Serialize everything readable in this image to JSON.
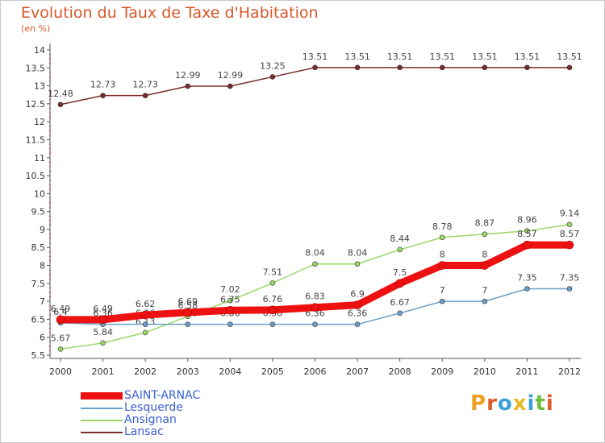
{
  "title": "Evolution du Taux de Taxe d'Habitation",
  "subtitle": "(en %)",
  "logo": {
    "text": "Proxiti",
    "letters": [
      "P",
      "r",
      "o",
      "x",
      "i",
      "t",
      "i"
    ],
    "colors": [
      "#f0a020",
      "#e05a2a",
      "#3aa0d8",
      "#e8b820",
      "#3aa0d8",
      "#6cbf3a",
      "#e05a2a"
    ]
  },
  "chart_data": {
    "type": "line",
    "x": [
      2000,
      2001,
      2002,
      2003,
      2004,
      2005,
      2006,
      2007,
      2008,
      2009,
      2010,
      2011,
      2012
    ],
    "xlabels": [
      "2000",
      "2001",
      "2002",
      "2003",
      "2004",
      "2005",
      "2006",
      "2007",
      "2008",
      "2009",
      "2010",
      "2011",
      "2012"
    ],
    "ylim": [
      5.5,
      14
    ],
    "yticks": [
      "5.5",
      "6",
      "6.5",
      "7",
      "7.5",
      "8",
      "8.5",
      "9",
      "9.5",
      "10",
      "10.5",
      "11",
      "11.5",
      "12",
      "12.5",
      "13",
      "13.5",
      "14"
    ],
    "grid": false,
    "legend_position": "bottom-left",
    "series": [
      {
        "name": "Lansac",
        "color": "#7a2b2b",
        "values": [
          12.48,
          12.73,
          12.73,
          12.99,
          12.99,
          13.25,
          13.51,
          13.51,
          13.51,
          13.51,
          13.51,
          13.51,
          13.51
        ],
        "labels": [
          "12.48",
          "12.73",
          "12.73",
          "12.99",
          "12.99",
          "13.25",
          "13.51",
          "13.51",
          "13.51",
          "13.51",
          "13.51",
          "13.51",
          "13.51"
        ]
      },
      {
        "name": "Ansignan",
        "color": "#9ad86a",
        "values": [
          5.67,
          5.84,
          6.13,
          6.58,
          7.02,
          7.51,
          8.04,
          8.04,
          8.44,
          8.78,
          8.87,
          8.96,
          9.14
        ],
        "labels": [
          "5.67",
          "5.84",
          "6.13",
          "6.58",
          "7.02",
          "7.51",
          "8.04",
          "8.04",
          "8.44",
          "8.78",
          "8.87",
          "8.96",
          "9.14"
        ]
      },
      {
        "name": "Lesquerde",
        "color": "#6a9ec8",
        "values": [
          6.4,
          6.36,
          6.36,
          6.36,
          6.36,
          6.36,
          6.36,
          6.36,
          6.67,
          7,
          7,
          7.35,
          7.35
        ],
        "labels": [
          "6.4",
          "6.36",
          "6.36",
          "6.36",
          "6.36",
          "6.36",
          "6.36",
          "6.36",
          "6.67",
          "7",
          "7",
          "7.35",
          "7.35"
        ]
      },
      {
        "name": "SAINT-ARNAC",
        "color": "#ee1111",
        "values": [
          6.49,
          6.49,
          6.62,
          6.69,
          6.75,
          6.76,
          6.83,
          6.9,
          7.5,
          8,
          8,
          8.57,
          8.57
        ],
        "labels": [
          "6.49",
          "6.49",
          "6.62",
          "6.69",
          "6.75",
          "6.76",
          "6.83",
          "6.9",
          "7.5",
          "8",
          "8",
          "8.57",
          "8.57"
        ]
      }
    ]
  },
  "legend": [
    {
      "name": "SAINT-ARNAC",
      "color": "#ee1111",
      "thick": true
    },
    {
      "name": "Lesquerde",
      "color": "#6a9ec8",
      "thick": false
    },
    {
      "name": "Ansignan",
      "color": "#9ad86a",
      "thick": false
    },
    {
      "name": "Lansac",
      "color": "#7a2b2b",
      "thick": false
    }
  ]
}
